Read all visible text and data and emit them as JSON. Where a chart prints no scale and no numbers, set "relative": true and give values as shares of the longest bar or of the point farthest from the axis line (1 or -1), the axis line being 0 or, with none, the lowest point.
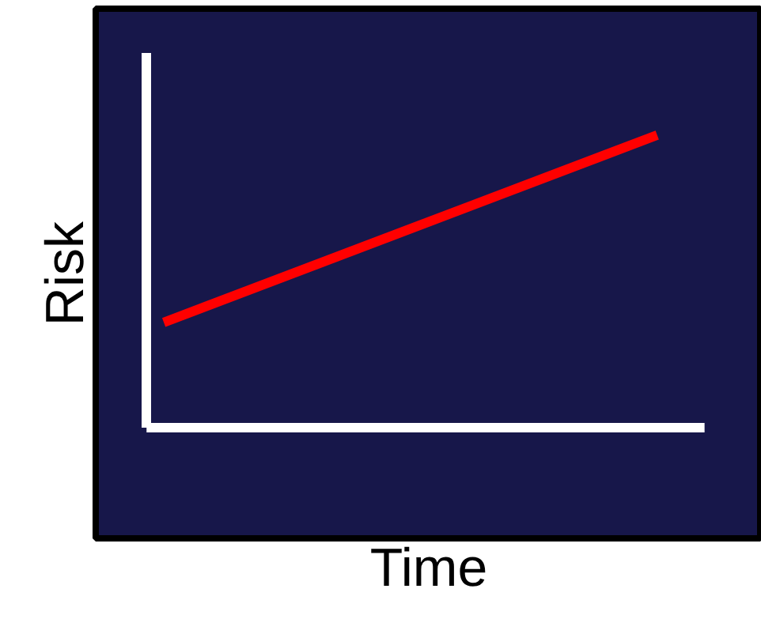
{
  "chart_data": {
    "type": "line",
    "relative": true,
    "xlabel": "Time",
    "ylabel": "Risk",
    "categories": [
      null,
      null
    ],
    "ref_lines": [
      {
        "axis": "y",
        "value": 0,
        "color": "#ffffff"
      }
    ],
    "series": [
      {
        "color": "#ff0000",
        "values": [
          0.36,
          1
        ]
      }
    ]
  }
}
